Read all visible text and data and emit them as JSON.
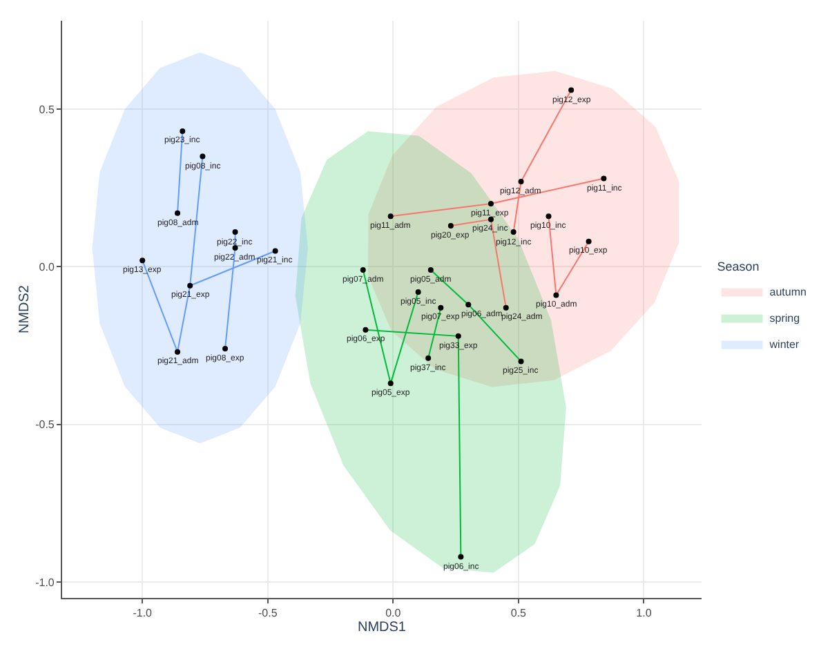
{
  "chart_data": {
    "type": "scatter",
    "xlabel": "NMDS1",
    "ylabel": "NMDS2",
    "legend_title": "Season",
    "legend": "right",
    "grid": true,
    "xlim": [
      -1.32,
      1.23
    ],
    "ylim": [
      -1.05,
      0.78
    ],
    "xticks": [
      {
        "value": -1,
        "label": "-1.0"
      },
      {
        "value": -0.5,
        "label": "-0.5"
      },
      {
        "value": 0,
        "label": "0.0"
      },
      {
        "value": 0.5,
        "label": "0.5"
      },
      {
        "value": 1,
        "label": "1.0"
      }
    ],
    "yticks": [
      {
        "value": -1,
        "label": "-1.0"
      },
      {
        "value": -0.5,
        "label": "-0.5"
      },
      {
        "value": 0,
        "label": "0.0"
      },
      {
        "value": 0.5,
        "label": "0.5"
      }
    ],
    "series": [
      {
        "name": "autumn",
        "type": "area",
        "color": "#f8766d",
        "x": [
          1.14,
          1.047,
          0.873,
          0.646,
          0.4,
          0.172,
          -0.003,
          -0.099,
          -0.1,
          -0.007,
          0.167,
          0.394,
          0.64,
          0.868,
          1.043,
          1.139
        ],
        "values": [
          0.27,
          0.443,
          0.565,
          0.621,
          0.6,
          0.507,
          0.353,
          0.165,
          -0.03,
          -0.203,
          -0.325,
          -0.381,
          -0.36,
          -0.267,
          -0.113,
          0.075
        ]
      },
      {
        "name": "spring",
        "type": "area",
        "color": "#00ba38",
        "x": [
          0.4,
          0.565,
          0.666,
          0.69,
          0.63,
          0.498,
          0.312,
          0.103,
          -0.1,
          -0.265,
          -0.366,
          -0.39,
          -0.33,
          -0.198,
          -0.012,
          0.197
        ],
        "values": [
          -0.97,
          -0.879,
          -0.694,
          -0.446,
          -0.17,
          0.09,
          0.296,
          0.415,
          0.43,
          0.339,
          0.154,
          -0.094,
          -0.37,
          -0.63,
          -0.836,
          -0.955
        ]
      },
      {
        "name": "winter",
        "type": "area",
        "color": "#619cff",
        "x": [
          -0.34,
          -0.37,
          -0.47,
          -0.61,
          -0.77,
          -0.93,
          -1.07,
          -1.17,
          -1.2,
          -1.17,
          -1.07,
          -0.93,
          -0.77,
          -0.61,
          -0.47,
          -0.37
        ],
        "values": [
          0.06,
          0.3,
          0.5,
          0.63,
          0.68,
          0.63,
          0.5,
          0.3,
          0.06,
          -0.18,
          -0.38,
          -0.51,
          -0.56,
          -0.51,
          -0.38,
          -0.18
        ]
      },
      {
        "type": "line",
        "color": "#619cff",
        "x": [
          -0.84,
          -0.86
        ],
        "values": [
          0.43,
          0.17
        ]
      },
      {
        "type": "line",
        "color": "#619cff",
        "x": [
          -0.76,
          -0.81,
          -0.86
        ],
        "values": [
          0.35,
          -0.06,
          -0.27
        ]
      },
      {
        "type": "line",
        "color": "#619cff",
        "x": [
          -1.0,
          -0.86
        ],
        "values": [
          0.02,
          -0.27
        ]
      },
      {
        "type": "line",
        "color": "#619cff",
        "x": [
          -0.81,
          -0.47
        ],
        "values": [
          -0.06,
          0.05
        ]
      },
      {
        "type": "line",
        "color": "#619cff",
        "x": [
          -0.63,
          -0.63,
          -0.67
        ],
        "values": [
          0.11,
          0.06,
          -0.26
        ]
      },
      {
        "type": "line",
        "color": "#00ba38",
        "x": [
          -0.12,
          -0.01,
          0.1
        ],
        "values": [
          -0.01,
          -0.37,
          -0.08
        ]
      },
      {
        "type": "line",
        "color": "#00ba38",
        "x": [
          0.15,
          0.3,
          0.51
        ],
        "values": [
          -0.01,
          -0.12,
          -0.3
        ]
      },
      {
        "type": "line",
        "color": "#00ba38",
        "x": [
          -0.11,
          0.26,
          0.27
        ],
        "values": [
          -0.2,
          -0.22,
          -0.92
        ]
      },
      {
        "type": "line",
        "color": "#00ba38",
        "x": [
          0.19,
          0.14
        ],
        "values": [
          -0.13,
          -0.29
        ]
      },
      {
        "type": "line",
        "color": "#f8766d",
        "x": [
          0.71,
          0.51,
          0.48
        ],
        "values": [
          0.56,
          0.27,
          0.11
        ]
      },
      {
        "type": "line",
        "color": "#f8766d",
        "x": [
          -0.01,
          0.39,
          0.84
        ],
        "values": [
          0.16,
          0.2,
          0.28
        ]
      },
      {
        "type": "line",
        "color": "#f8766d",
        "x": [
          0.23,
          0.39,
          0.45
        ],
        "values": [
          0.13,
          0.15,
          -0.13
        ]
      },
      {
        "type": "line",
        "color": "#f8766d",
        "x": [
          0.62,
          0.65,
          0.78
        ],
        "values": [
          0.16,
          -0.09,
          0.08
        ]
      },
      {
        "marker": "circle",
        "color": "#000000",
        "x": [
          -0.84,
          -0.76,
          -0.86,
          -1.0,
          -0.81,
          -0.86,
          -0.63,
          -0.63,
          -0.47,
          -0.67,
          -0.12,
          0.15,
          0.1,
          0.19,
          0.3,
          -0.11,
          0.26,
          0.14,
          0.51,
          -0.01,
          0.27,
          0.71,
          0.51,
          0.84,
          0.39,
          0.48,
          0.62,
          0.78,
          0.65,
          0.45,
          -0.01,
          0.23,
          0.39
        ],
        "values": [
          0.43,
          0.35,
          0.17,
          0.02,
          -0.06,
          -0.27,
          0.11,
          0.06,
          0.05,
          -0.26,
          -0.01,
          -0.01,
          -0.08,
          -0.13,
          -0.12,
          -0.2,
          -0.22,
          -0.29,
          -0.3,
          -0.37,
          -0.92,
          0.56,
          0.27,
          0.28,
          0.2,
          0.11,
          0.16,
          0.08,
          -0.09,
          -0.13,
          0.16,
          0.13,
          0.15
        ]
      }
    ],
    "annotations": [
      {
        "text": "pig23_inc",
        "x": -0.84,
        "y": 0.43
      },
      {
        "text": "pig08_inc",
        "x": -0.76,
        "y": 0.35
      },
      {
        "text": "pig08_adm",
        "x": -0.86,
        "y": 0.17
      },
      {
        "text": "pig13_exp",
        "x": -1.0,
        "y": 0.02
      },
      {
        "text": "pig21_exp",
        "x": -0.81,
        "y": -0.06
      },
      {
        "text": "pig21_adm",
        "x": -0.86,
        "y": -0.27
      },
      {
        "text": "pig22_inc",
        "x": -0.63,
        "y": 0.11
      },
      {
        "text": "pig22_adm",
        "x": -0.63,
        "y": 0.06
      },
      {
        "text": "pig21_inc",
        "x": -0.47,
        "y": 0.05
      },
      {
        "text": "pig08_exp",
        "x": -0.67,
        "y": -0.26
      },
      {
        "text": "pig07_adm",
        "x": -0.12,
        "y": -0.01
      },
      {
        "text": "pig05_adm",
        "x": 0.15,
        "y": -0.01
      },
      {
        "text": "pig05_inc",
        "x": 0.1,
        "y": -0.08
      },
      {
        "text": "pig07_exp",
        "x": 0.19,
        "y": -0.13
      },
      {
        "text": "pig06_adm",
        "x": 0.3,
        "y": -0.12
      },
      {
        "text": "pig06_exp",
        "x": -0.11,
        "y": -0.2
      },
      {
        "text": "pig33_exp",
        "x": 0.26,
        "y": -0.22
      },
      {
        "text": "pig37_inc",
        "x": 0.14,
        "y": -0.29
      },
      {
        "text": "pig25_inc",
        "x": 0.51,
        "y": -0.3
      },
      {
        "text": "pig05_exp",
        "x": -0.01,
        "y": -0.37
      },
      {
        "text": "pig06_inc",
        "x": 0.27,
        "y": -0.92
      },
      {
        "text": "pig12_exp",
        "x": 0.71,
        "y": 0.56
      },
      {
        "text": "pig12_adm",
        "x": 0.51,
        "y": 0.27
      },
      {
        "text": "pig11_inc",
        "x": 0.84,
        "y": 0.28
      },
      {
        "text": "pig11_exp",
        "x": 0.39,
        "y": 0.2
      },
      {
        "text": "pig12_inc",
        "x": 0.48,
        "y": 0.11
      },
      {
        "text": "pig10_inc",
        "x": 0.62,
        "y": 0.16
      },
      {
        "text": "pig10_exp",
        "x": 0.78,
        "y": 0.08
      },
      {
        "text": "pig10_adm",
        "x": 0.65,
        "y": -0.09
      },
      {
        "text": "pig24_adm",
        "x": 0.45,
        "y": -0.13
      },
      {
        "text": "pig11_adm",
        "x": -0.01,
        "y": 0.16
      },
      {
        "text": "pig20_exp",
        "x": 0.23,
        "y": 0.13
      },
      {
        "text": "pig24_inc",
        "x": 0.39,
        "y": 0.15
      }
    ]
  }
}
